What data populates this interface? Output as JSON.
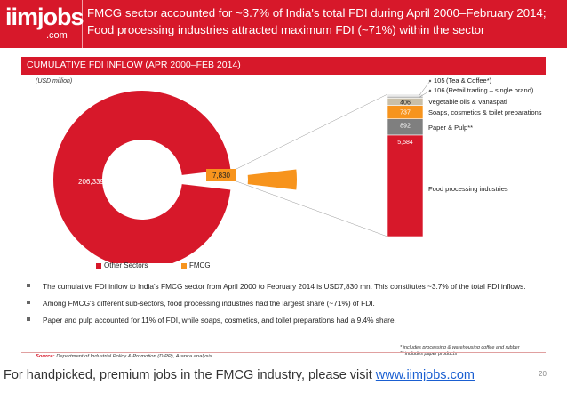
{
  "header": {
    "logo_main": "iimjobs",
    "logo_sub": ".com",
    "title": "FMCG sector accounted for ~3.7% of India's total FDI during April 2000–February 2014; Food processing industries attracted maximum FDI (~71%) within the sector"
  },
  "subheader": "CUMULATIVE FDI INFLOW (APR 2000–FEB 2014)",
  "unit_note": "(USD million)",
  "chart_data": [
    {
      "type": "pie",
      "donut": true,
      "categories": [
        "Other Sectors",
        "FMCG"
      ],
      "values": [
        206339,
        7830
      ],
      "value_labels": [
        "206,339",
        "7,830"
      ],
      "colors": [
        "#d7182a",
        "#f7941d"
      ],
      "legend": [
        "Other Sectors",
        "FMCG"
      ],
      "legend_position": "bottom"
    },
    {
      "type": "bar",
      "stacked": true,
      "categories": [
        "FMCG"
      ],
      "series": [
        {
          "name": "Food processing industries",
          "value": 5584,
          "value_label": "5,584",
          "color": "#d7182a"
        },
        {
          "name": "Paper & Pulp**",
          "value": 892,
          "value_label": "892",
          "color": "#7f7f7f"
        },
        {
          "name": "Soaps, cosmetics & toilet preparations",
          "value": 737,
          "value_label": "737",
          "color": "#f7941d"
        },
        {
          "name": "Vegetable oils & Vanaspati",
          "value": 406,
          "value_label": "406",
          "color": "#c9bfa8"
        },
        {
          "name": "(Retail trading – single brand)",
          "value": 106,
          "value_label": "106",
          "color": "#bdbdbd"
        },
        {
          "name": "(Tea & Coffee*)",
          "value": 105,
          "value_label": "105",
          "color": "#e6e6e6"
        }
      ]
    }
  ],
  "bullets": [
    "The cumulative FDI inflow to India's FMCG sector from April 2000 to February 2014 is USD7,830 mn. This constitutes ~3.7% of the total FDI inflows.",
    "Among FMCG's different sub-sectors, food processing industries had the largest share (~71%) of FDI.",
    "Paper and pulp accounted for 11% of FDI, while soaps, cosmetics, and toilet preparations had a 9.4% share."
  ],
  "footnotes": [
    "* includes processing & warehousing coffee and rubber",
    "** includes paper products"
  ],
  "source": {
    "label": "Source:",
    "text": "Department of Industrial Policy & Promotion (DIPP), Aranca analysis"
  },
  "footer": {
    "text": "For handpicked, premium jobs in the FMCG industry, please visit ",
    "link": "www.iimjobs.com"
  },
  "page_number": "20"
}
